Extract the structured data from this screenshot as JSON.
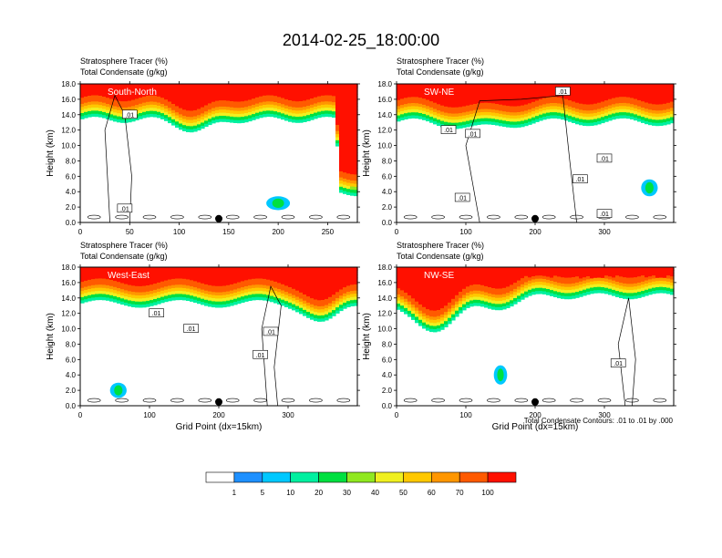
{
  "title": "2014-02-25_18:00:00",
  "chart_data": [
    {
      "type": "heatmap",
      "subtitle_1": "Stratosphere Tracer   (%)",
      "subtitle_2": "Total Condensate   (g/kg)",
      "inset_label": "South-North",
      "ylabel": "Height (km)",
      "xlabel": "",
      "x_ticks": [
        "0",
        "50",
        "100",
        "150",
        "200",
        "250"
      ],
      "x_range": [
        0,
        280
      ],
      "y_ticks": [
        "0.0",
        "2.0",
        "4.0",
        "6.0",
        "8.0",
        "10.0",
        "12.0",
        "14.0",
        "16.0",
        "18.0"
      ],
      "y_range": [
        0,
        18
      ],
      "marker_x": 140,
      "contour_labels": [
        {
          "text": ".01",
          "x": 50,
          "y": 14.0
        },
        {
          "text": ".01",
          "x": 45,
          "y": 1.8
        }
      ]
    },
    {
      "type": "heatmap",
      "subtitle_1": "Stratosphere Tracer   (%)",
      "subtitle_2": "Total Condensate   (g/kg)",
      "inset_label": "SW-NE",
      "ylabel": "Height (km)",
      "xlabel": "",
      "x_ticks": [
        "0",
        "100",
        "200",
        "300"
      ],
      "x_range": [
        0,
        400
      ],
      "y_ticks": [
        "0.0",
        "2.0",
        "4.0",
        "6.0",
        "8.0",
        "10.0",
        "12.0",
        "14.0",
        "16.0",
        "18.0"
      ],
      "y_range": [
        0,
        18
      ],
      "marker_x": 200,
      "contour_labels": [
        {
          "text": ".01",
          "x": 240,
          "y": 17.0
        },
        {
          "text": ".01",
          "x": 75,
          "y": 12.0
        },
        {
          "text": ".01",
          "x": 110,
          "y": 11.5
        },
        {
          "text": ".01",
          "x": 300,
          "y": 8.3
        },
        {
          "text": ".01",
          "x": 265,
          "y": 5.6
        },
        {
          "text": ".01",
          "x": 95,
          "y": 3.2
        },
        {
          "text": ".01",
          "x": 300,
          "y": 1.1
        }
      ]
    },
    {
      "type": "heatmap",
      "subtitle_1": "Stratosphere Tracer   (%)",
      "subtitle_2": "Total Condensate   (g/kg)",
      "inset_label": "West-East",
      "ylabel": "Height (km)",
      "xlabel": "Grid Point (dx=15km)",
      "x_ticks": [
        "0",
        "100",
        "200",
        "300"
      ],
      "x_range": [
        0,
        400
      ],
      "y_ticks": [
        "0.0",
        "2.0",
        "4.0",
        "6.0",
        "8.0",
        "10.0",
        "12.0",
        "14.0",
        "16.0",
        "18.0"
      ],
      "y_range": [
        0,
        18
      ],
      "marker_x": 200,
      "contour_labels": [
        {
          "text": ".01",
          "x": 110,
          "y": 12.0
        },
        {
          "text": ".01",
          "x": 160,
          "y": 10.0
        },
        {
          "text": ".01",
          "x": 275,
          "y": 9.6
        },
        {
          "text": ".01",
          "x": 260,
          "y": 6.6
        }
      ]
    },
    {
      "type": "heatmap",
      "subtitle_1": "Stratosphere Tracer   (%)",
      "subtitle_2": "Total Condensate   (g/kg)",
      "inset_label": "NW-SE",
      "ylabel": "Height (km)",
      "xlabel": "Grid Point (dx=15km)",
      "x_ticks": [
        "0",
        "100",
        "200",
        "300"
      ],
      "x_range": [
        0,
        400
      ],
      "y_ticks": [
        "0.0",
        "2.0",
        "4.0",
        "6.0",
        "8.0",
        "10.0",
        "12.0",
        "14.0",
        "16.0",
        "18.0"
      ],
      "y_range": [
        0,
        18
      ],
      "marker_x": 200,
      "contour_note": "Total Condensate Contours: .01 to .01 by .000",
      "contour_labels": [
        {
          "text": ".01",
          "x": 320,
          "y": 5.5
        }
      ]
    }
  ],
  "colorbar": {
    "labels": [
      "1",
      "5",
      "10",
      "20",
      "30",
      "40",
      "50",
      "60",
      "70",
      "100"
    ],
    "colors": [
      "#ffffff",
      "#1e90ff",
      "#00c8ff",
      "#00f0a0",
      "#00e040",
      "#90e820",
      "#f0f020",
      "#ffc800",
      "#ff9600",
      "#ff5a00",
      "#ff1000"
    ]
  }
}
